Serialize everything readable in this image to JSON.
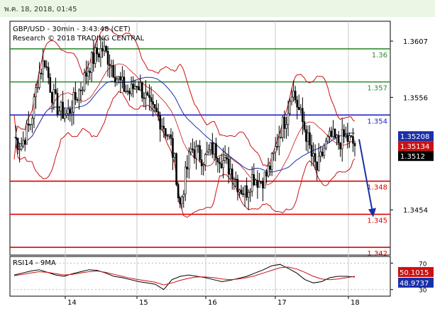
{
  "timestamp": "พ.ค. 18, 2018, 01:45",
  "chart_data": [
    {
      "type": "candlestick",
      "symbol_line": "GBP/USD - 30min - 3:43:48 (CET)",
      "research_line": "Research © 2018 TRADING CENTRAL",
      "y_ticks": [
        "1.3607",
        "1.3556",
        "1.3454"
      ],
      "ylim": [
        1.3413,
        1.3625
      ],
      "x_ticks": [
        "14",
        "15",
        "16",
        "17",
        "18"
      ],
      "levels": [
        {
          "value": 1.36,
          "label": "1.36",
          "color": "#2e8b2e"
        },
        {
          "value": 1.357,
          "label": "1.357",
          "color": "#2e8b2e"
        },
        {
          "value": 1.354,
          "label": "1.354",
          "color": "#2020cc"
        },
        {
          "value": 1.348,
          "label": "1.348",
          "color": "#e00000"
        },
        {
          "value": 1.345,
          "label": "1.345",
          "color": "#e00000"
        },
        {
          "value": 1.342,
          "label": "1.342",
          "color": "#e00000"
        }
      ],
      "price_tags": [
        {
          "value": 1.35208,
          "label": "1.35208",
          "bg": "#1a2fa8"
        },
        {
          "value": 1.35134,
          "label": "1.35134",
          "bg": "#cc1111"
        },
        {
          "value": 1.3512,
          "label": "1.3512",
          "bg": "#000000"
        }
      ],
      "indicators": [
        "Bollinger Bands",
        "Moving Average"
      ],
      "forecast_arrow": {
        "from": 1.3518,
        "to": 1.3448,
        "color": "#1a2fa8"
      },
      "price_path": [
        [
          0,
          1.352
        ],
        [
          0.02,
          1.3512
        ],
        [
          0.05,
          1.3535
        ],
        [
          0.07,
          1.3575
        ],
        [
          0.09,
          1.359
        ],
        [
          0.11,
          1.356
        ],
        [
          0.13,
          1.3545
        ],
        [
          0.155,
          1.354
        ],
        [
          0.18,
          1.3555
        ],
        [
          0.2,
          1.3568
        ],
        [
          0.22,
          1.3585
        ],
        [
          0.24,
          1.3595
        ],
        [
          0.26,
          1.36
        ],
        [
          0.28,
          1.359
        ],
        [
          0.3,
          1.3575
        ],
        [
          0.32,
          1.3565
        ],
        [
          0.34,
          1.356
        ],
        [
          0.36,
          1.357
        ],
        [
          0.38,
          1.356
        ],
        [
          0.4,
          1.3545
        ],
        [
          0.42,
          1.354
        ],
        [
          0.44,
          1.353
        ],
        [
          0.46,
          1.3515
        ],
        [
          0.475,
          1.349
        ],
        [
          0.485,
          1.3455
        ],
        [
          0.5,
          1.348
        ],
        [
          0.52,
          1.351
        ],
        [
          0.54,
          1.3505
        ],
        [
          0.56,
          1.35
        ],
        [
          0.58,
          1.351
        ],
        [
          0.6,
          1.3505
        ],
        [
          0.62,
          1.3495
        ],
        [
          0.64,
          1.349
        ],
        [
          0.66,
          1.3475
        ],
        [
          0.68,
          1.347
        ],
        [
          0.7,
          1.3485
        ],
        [
          0.72,
          1.348
        ],
        [
          0.74,
          1.3485
        ],
        [
          0.76,
          1.35
        ],
        [
          0.78,
          1.3525
        ],
        [
          0.8,
          1.354
        ],
        [
          0.815,
          1.3565
        ],
        [
          0.83,
          1.355
        ],
        [
          0.845,
          1.3535
        ],
        [
          0.86,
          1.352
        ],
        [
          0.875,
          1.35
        ],
        [
          0.89,
          1.349
        ],
        [
          0.91,
          1.351
        ],
        [
          0.93,
          1.352
        ],
        [
          0.95,
          1.3515
        ],
        [
          0.97,
          1.352
        ],
        [
          1.0,
          1.3513
        ]
      ]
    },
    {
      "type": "line",
      "title": "RSI14 - 9MA",
      "y_ticks": [
        "70",
        "30"
      ],
      "ylim": [
        20,
        80
      ],
      "price_tags": [
        {
          "value": 50.1015,
          "label": "50.1015",
          "bg": "#cc1111"
        },
        {
          "value": 48.9737,
          "label": "48.9737",
          "bg": "#1a2fa8"
        }
      ],
      "series": [
        {
          "values": [
            52,
            55,
            58,
            60,
            56,
            52,
            50,
            54,
            57,
            60,
            59,
            55,
            50,
            48,
            45,
            42,
            40,
            38,
            30,
            45,
            50,
            52,
            50,
            48,
            45,
            42,
            44,
            47,
            50,
            55,
            60,
            66,
            68,
            62,
            55,
            45,
            40,
            42,
            48,
            50,
            50,
            49
          ]
        },
        {
          "values": [
            51,
            53,
            55,
            57,
            56,
            54,
            52,
            53,
            55,
            57,
            58,
            56,
            53,
            50,
            47,
            45,
            43,
            41,
            37,
            40,
            44,
            47,
            49,
            49,
            48,
            46,
            45,
            46,
            48,
            51,
            55,
            59,
            63,
            64,
            61,
            56,
            50,
            46,
            45,
            46,
            48,
            50
          ]
        }
      ]
    }
  ]
}
